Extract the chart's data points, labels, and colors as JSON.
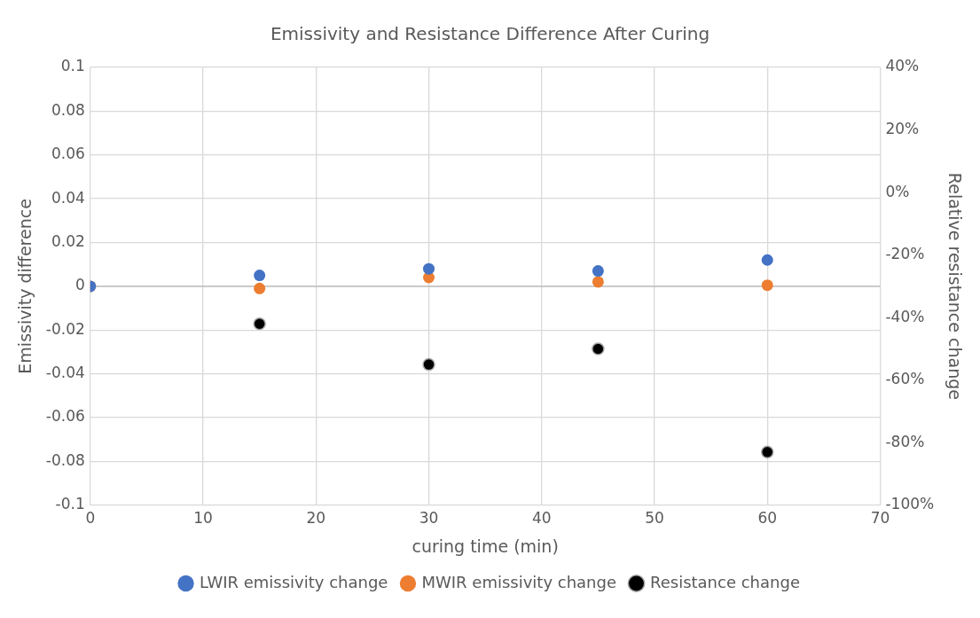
{
  "chart_data": {
    "type": "scatter",
    "title": "Emissivity and Resistance Difference After Curing",
    "xlabel": "curing time (min)",
    "ylabel": "Emissivity difference",
    "y2label": "Relative resistance change",
    "x": [
      0,
      15,
      30,
      45,
      60
    ],
    "series": [
      {
        "name": "LWIR emissivity change",
        "color": "#4472c4",
        "values": [
          0,
          0.005,
          0.008,
          0.007,
          0.012
        ]
      },
      {
        "name": "MWIR emissivity change",
        "color": "#ed7d31",
        "values": [
          0,
          -0.001,
          0.004,
          0.002,
          0.0005
        ]
      },
      {
        "name": "Resistance change",
        "color": "#000000",
        "axis": "y2",
        "x": [
          15,
          30,
          45,
          60
        ],
        "values": [
          -42,
          -55,
          -50,
          -83
        ]
      }
    ],
    "xlim": [
      0,
      70
    ],
    "xticks": [
      0,
      10,
      20,
      30,
      40,
      50,
      60,
      70
    ],
    "ylim": [
      -0.1,
      0.1
    ],
    "yticks": [
      -0.1,
      -0.08,
      -0.06,
      -0.04,
      -0.02,
      0,
      0.02,
      0.04,
      0.06,
      0.08,
      0.1
    ],
    "y2lim": [
      -100,
      40
    ],
    "y2ticks": [
      {
        "value": -100,
        "label": "-100%"
      },
      {
        "value": -80,
        "label": "-80%"
      },
      {
        "value": -60,
        "label": "-60%"
      },
      {
        "value": -40,
        "label": "-40%"
      },
      {
        "value": -20,
        "label": "-20%"
      },
      {
        "value": 0,
        "label": "0%"
      },
      {
        "value": 20,
        "label": "20%"
      },
      {
        "value": 40,
        "label": "40%"
      }
    ],
    "grid": true,
    "legend": "bottom",
    "marker": "circle"
  }
}
